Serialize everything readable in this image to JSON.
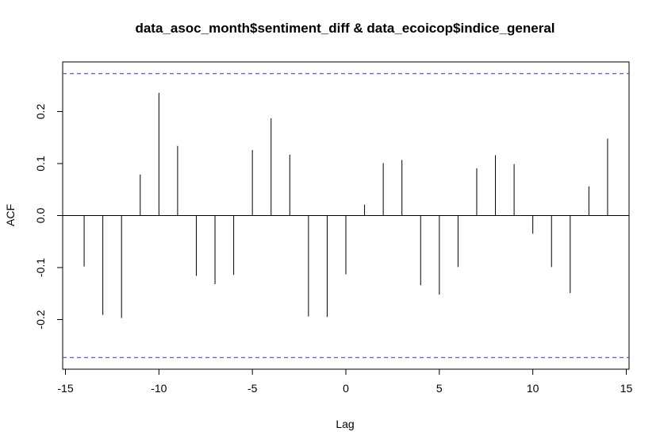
{
  "chart_data": {
    "type": "bar",
    "title": "data_asoc_month$sentiment_diff & data_ecoicop$indice_general",
    "xlabel": "Lag",
    "ylabel": "ACF",
    "xlim": [
      -15,
      15
    ],
    "ylim": [
      -0.3,
      0.3
    ],
    "x_ticks": [
      -15,
      -10,
      -5,
      0,
      5,
      10,
      15
    ],
    "x_tick_labels": [
      "-15",
      "-10",
      "-5",
      "0",
      "5",
      "10",
      "15"
    ],
    "y_ticks": [
      -0.2,
      -0.1,
      0.0,
      0.1,
      0.2
    ],
    "y_tick_labels": [
      "-0.2",
      "-0.1",
      "0.0",
      "0.1",
      "0.2"
    ],
    "confidence_bound": 0.273,
    "lags": [
      -14,
      -13,
      -12,
      -11,
      -10,
      -9,
      -8,
      -7,
      -6,
      -5,
      -4,
      -3,
      -2,
      -1,
      0,
      1,
      2,
      3,
      4,
      5,
      6,
      7,
      8,
      9,
      10,
      11,
      12,
      13,
      14
    ],
    "values": [
      -0.098,
      -0.191,
      -0.197,
      0.079,
      0.236,
      0.134,
      -0.116,
      -0.132,
      -0.114,
      0.126,
      0.187,
      0.117,
      -0.194,
      -0.195,
      -0.113,
      0.021,
      0.101,
      0.107,
      -0.134,
      -0.152,
      -0.099,
      0.091,
      0.116,
      0.099,
      -0.035,
      -0.099,
      -0.149,
      0.056,
      0.148
    ],
    "grid": false,
    "colors": {
      "bars": "#000000",
      "bounds": "#4444ff",
      "axes": "#000000"
    }
  }
}
